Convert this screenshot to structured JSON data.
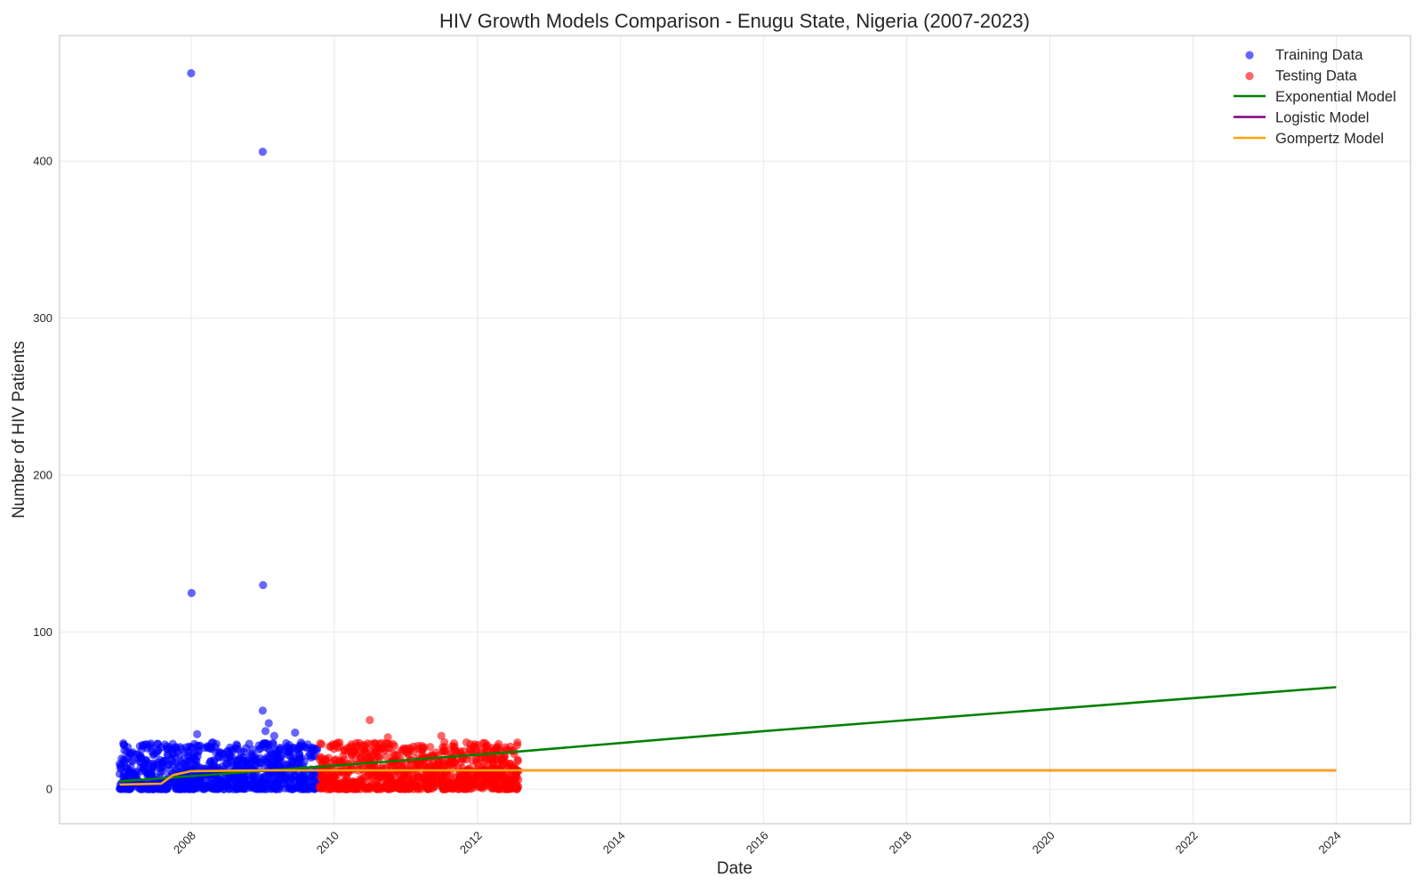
{
  "chart_data": {
    "type": "scatter",
    "title": "HIV Growth Models Comparison - Enugu State, Nigeria (2007-2023)",
    "xlabel": "Date",
    "ylabel": "Number of HIV Patients",
    "xlim": [
      "2006-03-01",
      "2025-01-15"
    ],
    "ylim": [
      -22,
      480
    ],
    "x_ticks": [
      "2008",
      "2010",
      "2012",
      "2014",
      "2016",
      "2018",
      "2020",
      "2022",
      "2024"
    ],
    "y_ticks": [
      0,
      100,
      200,
      300,
      400
    ],
    "grid": true,
    "legend_position": "top-right",
    "series": [
      {
        "name": "Training Data",
        "kind": "scatter",
        "color": "#0000ff",
        "date_range": [
          "2007-01-01",
          "2009-10-15"
        ],
        "typical_range": [
          0,
          30
        ],
        "notable_points": [
          {
            "x": "2007-01-01",
            "y": 16
          },
          {
            "x": "2007-05-01",
            "y": 13
          },
          {
            "x": "2008-01-01",
            "y": 456
          },
          {
            "x": "2008-01-03",
            "y": 125
          },
          {
            "x": "2008-02-01",
            "y": 35
          },
          {
            "x": "2009-01-01",
            "y": 406
          },
          {
            "x": "2009-01-03",
            "y": 130
          },
          {
            "x": "2009-01-01",
            "y": 50
          },
          {
            "x": "2009-02-01",
            "y": 42
          },
          {
            "x": "2009-01-15",
            "y": 37
          },
          {
            "x": "2009-03-01",
            "y": 34
          },
          {
            "x": "2009-06-15",
            "y": 36
          }
        ]
      },
      {
        "name": "Testing Data",
        "kind": "scatter",
        "color": "#ff0000",
        "date_range": [
          "2009-10-15",
          "2012-07-31"
        ],
        "typical_range": [
          0,
          30
        ],
        "notable_points": [
          {
            "x": "2010-07-01",
            "y": 44
          },
          {
            "x": "2011-07-01",
            "y": 34
          },
          {
            "x": "2010-10-01",
            "y": 33
          }
        ]
      },
      {
        "name": "Exponential Model",
        "kind": "line",
        "color": "#008000",
        "points": [
          {
            "x": "2007-01-01",
            "y": 5
          },
          {
            "x": "2010-01-01",
            "y": 15
          },
          {
            "x": "2012-07-31",
            "y": 24
          },
          {
            "x": "2016-01-01",
            "y": 37
          },
          {
            "x": "2020-01-01",
            "y": 51
          },
          {
            "x": "2024-01-01",
            "y": 65
          }
        ]
      },
      {
        "name": "Logistic Model",
        "kind": "line",
        "color": "#800080",
        "points": [
          {
            "x": "2007-01-01",
            "y": 3
          },
          {
            "x": "2007-08-01",
            "y": 3.5
          },
          {
            "x": "2007-10-01",
            "y": 9
          },
          {
            "x": "2008-01-01",
            "y": 11.5
          },
          {
            "x": "2009-01-01",
            "y": 12
          },
          {
            "x": "2024-01-01",
            "y": 12
          }
        ]
      },
      {
        "name": "Gompertz Model",
        "kind": "line",
        "color": "#ffa500",
        "points": [
          {
            "x": "2007-01-01",
            "y": 3
          },
          {
            "x": "2007-08-01",
            "y": 3.5
          },
          {
            "x": "2007-10-01",
            "y": 9
          },
          {
            "x": "2008-01-01",
            "y": 11.5
          },
          {
            "x": "2009-01-01",
            "y": 12
          },
          {
            "x": "2024-01-01",
            "y": 12
          }
        ]
      }
    ]
  }
}
